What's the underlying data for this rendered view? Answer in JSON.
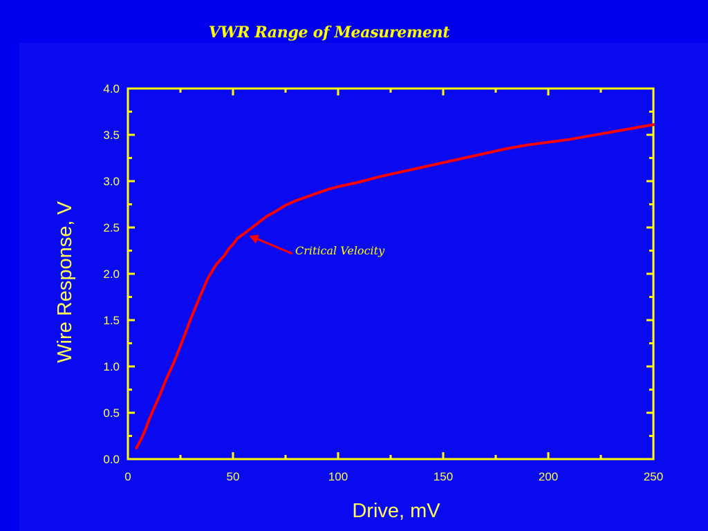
{
  "slide": {
    "title": "VWR Range of Measurement",
    "background_color": "#0000ee",
    "accent_color": "#ffff00"
  },
  "chart_data": {
    "type": "line",
    "title": "VWR Range of Measurement",
    "xlabel": "Drive, mV",
    "ylabel": "Wire Response, V",
    "xlim": [
      0,
      250
    ],
    "ylim": [
      0,
      4.0
    ],
    "x_ticks": [
      "0",
      "50",
      "100",
      "150",
      "200",
      "250"
    ],
    "y_ticks": [
      "0.0",
      "0.5",
      "1.0",
      "1.5",
      "2.0",
      "2.5",
      "3.0",
      "3.5",
      "4.0"
    ],
    "grid": false,
    "legend": "none",
    "axis_color": "#ffff00",
    "series": [
      {
        "color": "#ff0000",
        "x": [
          4,
          6,
          8,
          10,
          12,
          15,
          18,
          22,
          26,
          30,
          34,
          38,
          42,
          46,
          48,
          50,
          52,
          55,
          58,
          62,
          66,
          70,
          75,
          80,
          85,
          90,
          95,
          100,
          110,
          120,
          130,
          140,
          150,
          160,
          170,
          180,
          190,
          200,
          210,
          220,
          230,
          240,
          245,
          250
        ],
        "y": [
          0.12,
          0.2,
          0.3,
          0.42,
          0.53,
          0.68,
          0.85,
          1.05,
          1.28,
          1.52,
          1.74,
          1.95,
          2.1,
          2.2,
          2.27,
          2.32,
          2.38,
          2.43,
          2.48,
          2.55,
          2.62,
          2.67,
          2.74,
          2.79,
          2.83,
          2.87,
          2.91,
          2.94,
          2.99,
          3.05,
          3.1,
          3.15,
          3.2,
          3.25,
          3.3,
          3.35,
          3.39,
          3.42,
          3.45,
          3.49,
          3.53,
          3.57,
          3.59,
          3.61
        ]
      }
    ],
    "annotations": [
      {
        "text": "Critical Velocity",
        "x": 57,
        "y": 2.41,
        "color": "#ff0000"
      }
    ]
  }
}
